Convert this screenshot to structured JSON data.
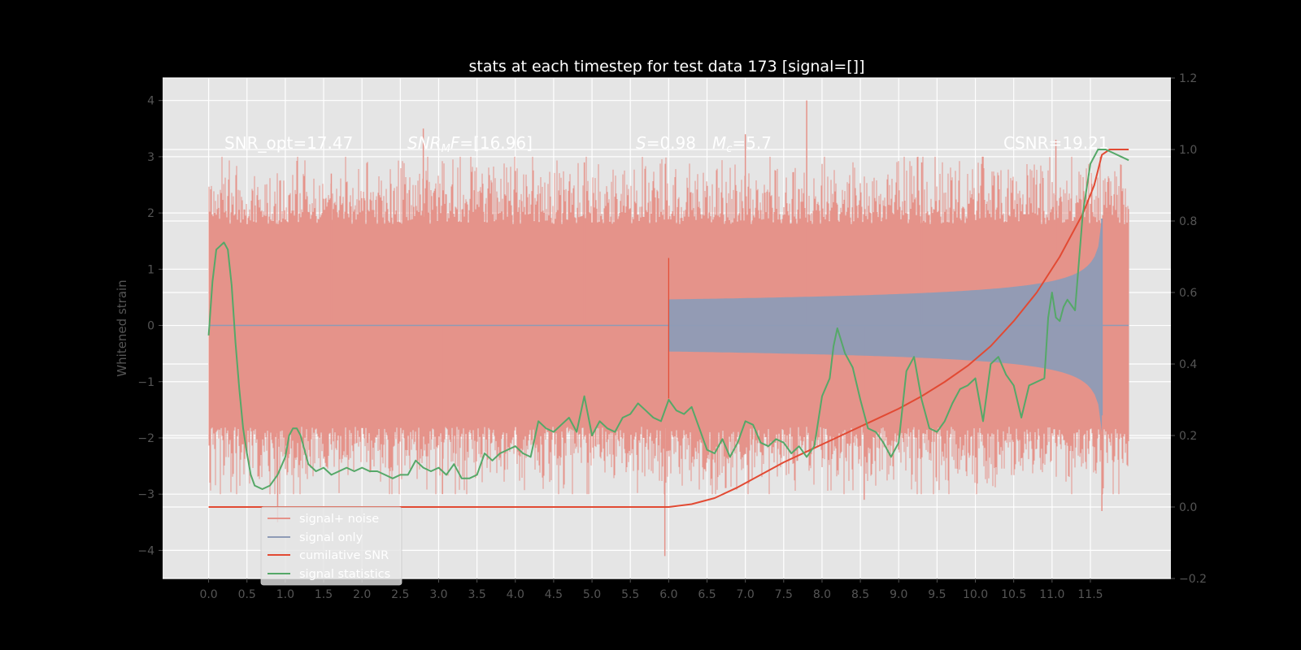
{
  "chart_data": {
    "type": "line",
    "title": "stats at each timestep for test data 173 [signal=[]]",
    "ylabel": "Whitened strain",
    "xlabel": "",
    "xlim": [
      -0.6,
      12.55
    ],
    "ylim": [
      -4.5,
      4.4
    ],
    "ylim_right": [
      -0.2,
      1.2
    ],
    "x_ticks": [
      0.0,
      0.5,
      1.0,
      1.5,
      2.0,
      2.5,
      3.0,
      3.5,
      4.0,
      4.5,
      5.0,
      5.5,
      6.0,
      6.5,
      7.0,
      7.5,
      8.0,
      8.5,
      9.0,
      9.5,
      10.0,
      10.5,
      11.0,
      11.5
    ],
    "x_tick_labels": [
      "0.0",
      "0.5",
      "1.0",
      "1.5",
      "2.0",
      "2.5",
      "3.0",
      "3.5",
      "4.0",
      "4.5",
      "5.0",
      "5.5",
      "6.0",
      "6.5",
      "7.0",
      "7.5",
      "8.0",
      "8.5",
      "9.0",
      "9.5",
      "10.0",
      "10.5",
      "11.0",
      "11.5"
    ],
    "y_ticks": [
      -4,
      -3,
      -2,
      -1,
      0,
      1,
      2,
      3,
      4
    ],
    "y_tick_labels": [
      "−4",
      "−3",
      "−2",
      "−1",
      "0",
      "1",
      "2",
      "3",
      "4"
    ],
    "y_ticks_right": [
      -0.2,
      0.0,
      0.2,
      0.4,
      0.6,
      0.8,
      1.0,
      1.2
    ],
    "y_tick_labels_right": [
      "−0.2",
      "0.0",
      "0.2",
      "0.4",
      "0.6",
      "0.8",
      "1.0",
      "1.2"
    ],
    "annotations": {
      "snr_opt": "SNR_opt=17.47",
      "snr_mf_main": "SNR",
      "snr_mf_sub": "M",
      "snr_mf_f": "F",
      "snr_mf_rest": "=[16.96]",
      "s_main": "S",
      "s_rest": "=0.98",
      "mc_main": "M",
      "mc_sub": "c",
      "mc_rest": "=5.7",
      "csnr": "CSNR=19.21"
    },
    "legend": [
      "signal+ noise",
      "signal only",
      "cumilative SNR",
      "signal statistics"
    ],
    "colors": {
      "noise": "#e5938a",
      "signal": "#8e9bb6",
      "csnr": "#e24a33",
      "stat": "#55a868",
      "background": "#e5e5e5",
      "grid": "#ffffff"
    },
    "series": [
      {
        "name": "signal+ noise",
        "axis": "left",
        "kind": "noise_band",
        "x_range": [
          0.0,
          12.0
        ],
        "envelope": 1.8,
        "peaks_x": [
          0.9,
          1.6,
          2.8,
          3.05,
          4.9,
          5.95,
          7.0,
          7.8,
          8.55,
          9.3,
          10.1,
          11.05,
          11.65
        ],
        "peaks_y": [
          -3.5,
          2.7,
          3.5,
          -3.0,
          2.9,
          -4.1,
          3.4,
          4.0,
          -3.1,
          2.9,
          3.0,
          3.3,
          -3.3
        ]
      },
      {
        "name": "signal only",
        "axis": "left",
        "kind": "chirp_envelope",
        "x_start": 6.0,
        "x_peak": 11.65,
        "x_end": 12.0,
        "amp_peak": 1.9
      },
      {
        "name": "cumilative SNR",
        "axis": "right",
        "x": [
          0.0,
          1.0,
          2.0,
          3.0,
          4.0,
          5.0,
          6.0,
          6.3,
          6.6,
          6.9,
          7.2,
          7.5,
          7.8,
          8.1,
          8.4,
          8.7,
          9.0,
          9.3,
          9.6,
          9.9,
          10.2,
          10.5,
          10.8,
          11.1,
          11.4,
          11.55,
          11.65,
          11.75,
          12.0
        ],
        "values": [
          0.0,
          0.0,
          0.0,
          0.0,
          0.0,
          0.0,
          0.0,
          0.008,
          0.025,
          0.055,
          0.09,
          0.125,
          0.155,
          0.185,
          0.215,
          0.245,
          0.275,
          0.31,
          0.35,
          0.395,
          0.45,
          0.52,
          0.6,
          0.7,
          0.82,
          0.9,
          0.985,
          1.0,
          1.0
        ]
      },
      {
        "name": "signal statistics",
        "axis": "right",
        "x": [
          0.0,
          0.05,
          0.1,
          0.15,
          0.2,
          0.25,
          0.3,
          0.35,
          0.4,
          0.45,
          0.5,
          0.55,
          0.6,
          0.7,
          0.8,
          0.9,
          1.0,
          1.05,
          1.1,
          1.15,
          1.2,
          1.3,
          1.4,
          1.5,
          1.6,
          1.7,
          1.8,
          1.9,
          2.0,
          2.1,
          2.2,
          2.3,
          2.4,
          2.5,
          2.6,
          2.7,
          2.8,
          2.9,
          3.0,
          3.1,
          3.2,
          3.3,
          3.4,
          3.5,
          3.6,
          3.7,
          3.8,
          3.9,
          4.0,
          4.1,
          4.2,
          4.3,
          4.4,
          4.5,
          4.6,
          4.7,
          4.8,
          4.9,
          5.0,
          5.1,
          5.2,
          5.3,
          5.4,
          5.5,
          5.6,
          5.7,
          5.8,
          5.9,
          6.0,
          6.1,
          6.2,
          6.3,
          6.4,
          6.5,
          6.6,
          6.7,
          6.8,
          6.9,
          7.0,
          7.1,
          7.2,
          7.3,
          7.4,
          7.5,
          7.6,
          7.7,
          7.8,
          7.9,
          8.0,
          8.1,
          8.15,
          8.2,
          8.3,
          8.4,
          8.5,
          8.6,
          8.7,
          8.8,
          8.9,
          9.0,
          9.1,
          9.2,
          9.3,
          9.4,
          9.5,
          9.6,
          9.7,
          9.8,
          9.9,
          10.0,
          10.1,
          10.2,
          10.3,
          10.4,
          10.5,
          10.6,
          10.7,
          10.8,
          10.9,
          10.95,
          11.0,
          11.05,
          11.1,
          11.15,
          11.2,
          11.3,
          11.4,
          11.5,
          11.6,
          11.65,
          11.7,
          11.8,
          11.9,
          12.0
        ],
        "values": [
          0.48,
          0.63,
          0.72,
          0.73,
          0.74,
          0.72,
          0.62,
          0.46,
          0.33,
          0.22,
          0.15,
          0.09,
          0.06,
          0.05,
          0.06,
          0.09,
          0.14,
          0.2,
          0.22,
          0.22,
          0.2,
          0.12,
          0.1,
          0.11,
          0.09,
          0.1,
          0.11,
          0.1,
          0.11,
          0.1,
          0.1,
          0.09,
          0.08,
          0.09,
          0.09,
          0.13,
          0.11,
          0.1,
          0.11,
          0.09,
          0.12,
          0.08,
          0.08,
          0.09,
          0.15,
          0.13,
          0.15,
          0.16,
          0.17,
          0.15,
          0.14,
          0.24,
          0.22,
          0.21,
          0.23,
          0.25,
          0.21,
          0.31,
          0.2,
          0.24,
          0.22,
          0.21,
          0.25,
          0.26,
          0.29,
          0.27,
          0.25,
          0.24,
          0.3,
          0.27,
          0.26,
          0.28,
          0.22,
          0.16,
          0.15,
          0.19,
          0.14,
          0.18,
          0.24,
          0.23,
          0.18,
          0.17,
          0.19,
          0.18,
          0.15,
          0.17,
          0.14,
          0.17,
          0.31,
          0.36,
          0.45,
          0.5,
          0.43,
          0.39,
          0.3,
          0.22,
          0.21,
          0.18,
          0.14,
          0.18,
          0.38,
          0.42,
          0.3,
          0.22,
          0.21,
          0.24,
          0.29,
          0.33,
          0.34,
          0.36,
          0.24,
          0.4,
          0.42,
          0.37,
          0.34,
          0.25,
          0.34,
          0.35,
          0.36,
          0.53,
          0.6,
          0.53,
          0.52,
          0.56,
          0.58,
          0.55,
          0.82,
          0.96,
          1.0,
          1.0,
          1.0,
          0.99,
          0.98,
          0.97
        ]
      }
    ]
  }
}
